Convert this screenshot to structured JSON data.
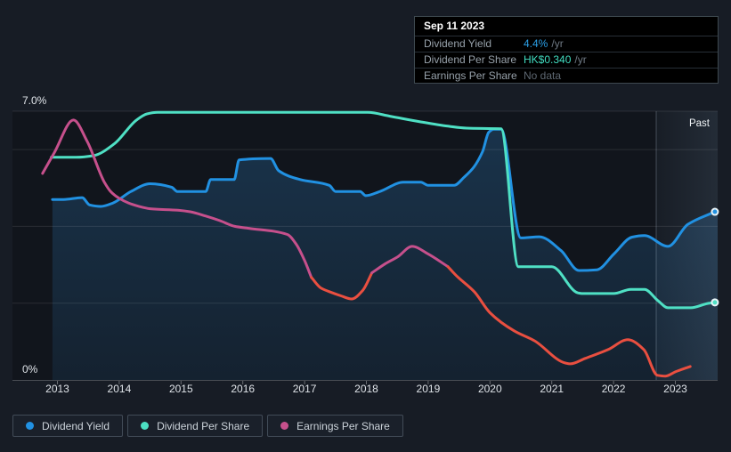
{
  "page": {
    "background": "#171c25"
  },
  "tooltip": {
    "date": "Sep 11 2023",
    "rows": [
      {
        "label": "Dividend Yield",
        "value": "4.4%",
        "suffix": "/yr",
        "value_color": "#2b9fe6"
      },
      {
        "label": "Dividend Per Share",
        "value": "HK$0.340",
        "suffix": "/yr",
        "value_color": "#41ddc1"
      },
      {
        "label": "Earnings Per Share",
        "value": "No data",
        "suffix": "",
        "value_color": "#5d6771"
      }
    ]
  },
  "legend": {
    "items": [
      {
        "label": "Dividend Yield",
        "color": "#2191e2"
      },
      {
        "label": "Dividend Per Share",
        "color": "#4ce0c3"
      },
      {
        "label": "Earnings Per Share",
        "color": "#c6508c"
      }
    ]
  },
  "chart_data": {
    "type": "line",
    "title": "Dividend history (yield, dividend per share, earnings per share)",
    "xlabel": "",
    "ylabel": "",
    "ylim": [
      0,
      7
    ],
    "xlim": [
      2012.27,
      2023.69
    ],
    "grid": true,
    "legend_position": "bottom",
    "y_axis_labels": [
      {
        "value": 7,
        "label": "7.0%"
      },
      {
        "value": 0,
        "label": "0%"
      }
    ],
    "gridline_values": [
      7,
      6,
      4,
      2
    ],
    "x_tick_years": [
      2013,
      2014,
      2015,
      2016,
      2017,
      2018,
      2019,
      2020,
      2021,
      2022,
      2023
    ],
    "past_region": {
      "start_year": 2022.69,
      "label": "Past"
    },
    "colors": {
      "grid": "rgba(255,255,255,0.10)",
      "axis": "rgba(255,255,255,0.22)",
      "tick_label": "#dfe3e8",
      "area_fill_base": "45,125,190",
      "past_fill_base": "150,185,220",
      "dot_ring": "#e9f3f7"
    },
    "series": [
      {
        "name": "Dividend Yield",
        "unit": "%",
        "color": "#2191e2",
        "area_fill": true,
        "end_dot": true,
        "points": [
          [
            2012.92,
            4.7
          ],
          [
            2013.1,
            4.7
          ],
          [
            2013.4,
            4.75
          ],
          [
            2013.52,
            4.56
          ],
          [
            2013.7,
            4.52
          ],
          [
            2013.9,
            4.61
          ],
          [
            2014.19,
            4.91
          ],
          [
            2014.5,
            5.11
          ],
          [
            2014.85,
            5.02
          ],
          [
            2014.94,
            4.91
          ],
          [
            2015.4,
            4.91
          ],
          [
            2015.48,
            5.22
          ],
          [
            2015.86,
            5.22
          ],
          [
            2015.94,
            5.73
          ],
          [
            2016.45,
            5.77
          ],
          [
            2016.58,
            5.45
          ],
          [
            2016.93,
            5.22
          ],
          [
            2017.4,
            5.07
          ],
          [
            2017.5,
            4.91
          ],
          [
            2017.9,
            4.91
          ],
          [
            2017.99,
            4.8
          ],
          [
            2018.22,
            4.91
          ],
          [
            2018.6,
            5.15
          ],
          [
            2018.88,
            5.15
          ],
          [
            2019.0,
            5.07
          ],
          [
            2019.42,
            5.07
          ],
          [
            2019.58,
            5.28
          ],
          [
            2019.74,
            5.55
          ],
          [
            2019.88,
            5.95
          ],
          [
            2019.98,
            6.45
          ],
          [
            2020.06,
            6.53
          ],
          [
            2020.18,
            6.53
          ],
          [
            2020.5,
            3.7
          ],
          [
            2020.8,
            3.73
          ],
          [
            2021.15,
            3.37
          ],
          [
            2021.44,
            2.85
          ],
          [
            2021.73,
            2.87
          ],
          [
            2022.01,
            3.29
          ],
          [
            2022.3,
            3.72
          ],
          [
            2022.5,
            3.76
          ],
          [
            2022.88,
            3.48
          ],
          [
            2023.2,
            4.05
          ],
          [
            2023.64,
            4.38
          ]
        ]
      },
      {
        "name": "Dividend Per Share",
        "unit": "%",
        "color": "#4fe0c4",
        "area_fill": false,
        "end_dot": true,
        "points": [
          [
            2012.9,
            5.8
          ],
          [
            2013.3,
            5.8
          ],
          [
            2013.58,
            5.84
          ],
          [
            2013.92,
            6.15
          ],
          [
            2014.28,
            6.77
          ],
          [
            2014.45,
            6.93
          ],
          [
            2014.62,
            6.97
          ],
          [
            2016.5,
            6.97
          ],
          [
            2018.02,
            6.97
          ],
          [
            2018.38,
            6.87
          ],
          [
            2018.85,
            6.73
          ],
          [
            2019.32,
            6.61
          ],
          [
            2019.62,
            6.56
          ],
          [
            2020.18,
            6.54
          ],
          [
            2020.46,
            2.95
          ],
          [
            2021.0,
            2.95
          ],
          [
            2021.42,
            2.27
          ],
          [
            2021.5,
            2.25
          ],
          [
            2022.0,
            2.25
          ],
          [
            2022.28,
            2.36
          ],
          [
            2022.5,
            2.36
          ],
          [
            2022.72,
            2.06
          ],
          [
            2022.88,
            1.88
          ],
          [
            2023.25,
            1.88
          ],
          [
            2023.52,
            1.99
          ],
          [
            2023.64,
            2.02
          ]
        ]
      },
      {
        "name": "Earnings Per Share",
        "unit": "%",
        "color": "#c6508c",
        "alt_color": "#e94f40",
        "area_fill": false,
        "end_dot": false,
        "segments": [
          {
            "color": "#c6508c",
            "points": [
              [
                2012.76,
                5.38
              ],
              [
                2012.95,
                5.92
              ],
              [
                2013.26,
                6.77
              ],
              [
                2013.48,
                6.22
              ],
              [
                2013.76,
                5.15
              ],
              [
                2013.86,
                4.91
              ],
              [
                2014.0,
                4.73
              ],
              [
                2014.15,
                4.61
              ],
              [
                2014.3,
                4.53
              ],
              [
                2014.5,
                4.46
              ],
              [
                2014.95,
                4.42
              ],
              [
                2015.15,
                4.38
              ],
              [
                2015.4,
                4.27
              ],
              [
                2015.63,
                4.15
              ],
              [
                2015.87,
                4.0
              ],
              [
                2016.1,
                3.95
              ],
              [
                2016.72,
                3.79
              ],
              [
                2016.87,
                3.52
              ],
              [
                2017.0,
                3.11
              ],
              [
                2017.11,
                2.67
              ]
            ]
          },
          {
            "color": "#e94f40",
            "points": [
              [
                2017.11,
                2.67
              ],
              [
                2017.26,
                2.4
              ],
              [
                2017.4,
                2.3
              ],
              [
                2017.59,
                2.19
              ],
              [
                2017.76,
                2.11
              ],
              [
                2017.94,
                2.33
              ],
              [
                2018.09,
                2.79
              ]
            ]
          },
          {
            "color": "#c6508c",
            "points": [
              [
                2018.09,
                2.79
              ],
              [
                2018.3,
                3.02
              ],
              [
                2018.51,
                3.21
              ],
              [
                2018.74,
                3.48
              ],
              [
                2018.99,
                3.29
              ],
              [
                2019.32,
                2.95
              ]
            ]
          },
          {
            "color": "#e94f40",
            "points": [
              [
                2019.32,
                2.95
              ],
              [
                2019.46,
                2.71
              ],
              [
                2019.75,
                2.29
              ],
              [
                2020.0,
                1.75
              ],
              [
                2020.39,
                1.28
              ],
              [
                2020.72,
                1.02
              ],
              [
                2021.22,
                0.44
              ],
              [
                2021.3,
                0.42
              ],
              [
                2021.54,
                0.56
              ],
              [
                2021.91,
                0.79
              ],
              [
                2022.23,
                1.05
              ],
              [
                2022.49,
                0.79
              ],
              [
                2022.71,
                0.12
              ],
              [
                2022.84,
                0.1
              ],
              [
                2023.0,
                0.21
              ],
              [
                2023.24,
                0.35
              ]
            ]
          }
        ]
      }
    ]
  }
}
